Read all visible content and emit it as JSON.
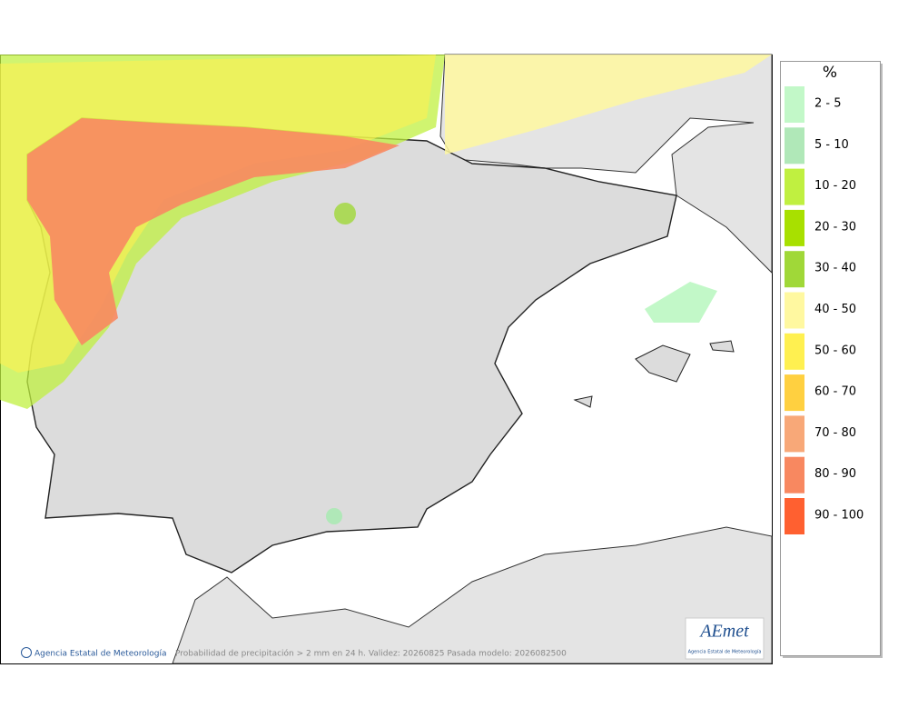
{
  "legend": {
    "title": "%",
    "items": [
      {
        "label": "2 - 5",
        "color": "#c2f8c8"
      },
      {
        "label": "5 - 10",
        "color": "#b0e8b8"
      },
      {
        "label": "10 - 20",
        "color": "#c0f040"
      },
      {
        "label": "20 - 30",
        "color": "#a8e000"
      },
      {
        "label": "30 - 40",
        "color": "#a0d838"
      },
      {
        "label": "40 - 50",
        "color": "#fff8a0"
      },
      {
        "label": "50 - 60",
        "color": "#fff050"
      },
      {
        "label": "60 - 70",
        "color": "#ffd040"
      },
      {
        "label": "70 - 80",
        "color": "#f8a878"
      },
      {
        "label": "80 - 90",
        "color": "#f88860"
      },
      {
        "label": "90 - 100",
        "color": "#ff6030"
      }
    ]
  },
  "footer": {
    "credit": "Agencia Estatal de Meteorología",
    "caption": "Probabilidad de precipitación > 2 mm en 24 h. Validez: 20260825 Pasada modelo: 2026082500"
  },
  "logo": {
    "name": "AEmet",
    "subtitle": "Agencia Estatal de Meteorología"
  }
}
